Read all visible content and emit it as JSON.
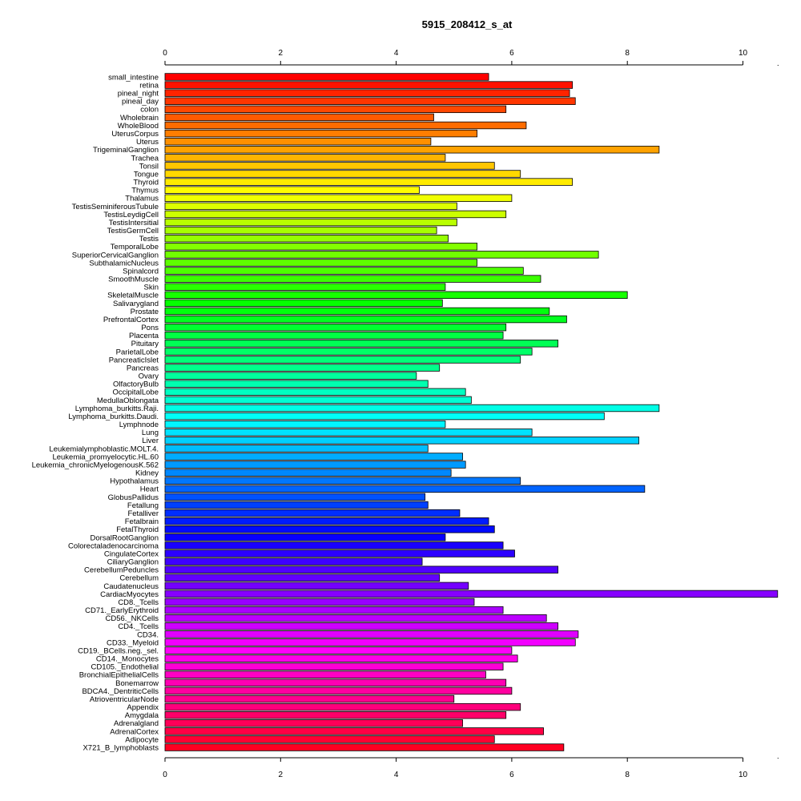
{
  "chart_data": {
    "type": "bar",
    "orientation": "horizontal",
    "title": "5915_208412_s_at",
    "xlabel": "",
    "ylabel": "",
    "xlim": [
      0,
      10.6
    ],
    "ticks": [
      0,
      2,
      4,
      6,
      8,
      10
    ],
    "tick_labels": [
      "0",
      "2",
      "4",
      "6",
      "8",
      "10"
    ],
    "grid": false,
    "color_scheme": "rainbow",
    "categories": [
      "small_intestine",
      "retina",
      "pineal_night",
      "pineal_day",
      "colon",
      "Wholebrain",
      "WholeBlood",
      "UterusCorpus",
      "Uterus",
      "TrigeminalGanglion",
      "Trachea",
      "Tonsil",
      "Tongue",
      "Thyroid",
      "Thymus",
      "Thalamus",
      "TestisSeminiferousTubule",
      "TestisLeydigCell",
      "TestisIntersitial",
      "TestisGermCell",
      "Testis",
      "TemporalLobe",
      "SuperiorCervicalGanglion",
      "SubthalamicNucleus",
      "Spinalcord",
      "SmoothMuscle",
      "Skin",
      "SkeletalMuscle",
      "Salivarygland",
      "Prostate",
      "PrefrontalCortex",
      "Pons",
      "Placenta",
      "Pituitary",
      "ParietalLobe",
      "PancreaticIslet",
      "Pancreas",
      "Ovary",
      "OlfactoryBulb",
      "OccipitalLobe",
      "MedullaOblongata",
      "Lymphoma_burkitts.Raji.",
      "Lymphoma_burkitts.Daudi.",
      "Lymphnode",
      "Lung",
      "Liver",
      "Leukemialymphoblastic.MOLT.4.",
      "Leukemia_promyelocytic.HL.60",
      "Leukemia_chronicMyelogenousK.562",
      "Kidney",
      "Hypothalamus",
      "Heart",
      "GlobusPallidus",
      "Fetallung",
      "Fetalliver",
      "Fetalbrain",
      "FetalThyroid",
      "DorsalRootGanglion",
      "Colorectaladenocarcinoma",
      "CingulateCortex",
      "CiliaryGanglion",
      "CerebellumPeduncles",
      "Cerebellum",
      "Caudatenucleus",
      "CardiacMyocytes",
      "CD8._Tcells",
      "CD71._EarlyErythroid",
      "CD56._NKCells",
      "CD4._Tcells",
      "CD34.",
      "CD33._Myeloid",
      "CD19._BCells.neg._sel.",
      "CD14._Monocytes",
      "CD105._Endothelial",
      "BronchialEpithelialCells",
      "Bonemarrow",
      "BDCA4._DentriticCells",
      "AtrioventricularNode",
      "Appendix",
      "Amygdala",
      "Adrenalgland",
      "AdrenalCortex",
      "Adipocyte",
      "X721_B_lymphoblasts"
    ],
    "values": [
      5.6,
      7.05,
      7.0,
      7.1,
      5.9,
      4.65,
      6.25,
      5.4,
      4.6,
      8.55,
      4.85,
      5.7,
      6.15,
      7.05,
      4.4,
      6.0,
      5.05,
      5.9,
      5.05,
      4.7,
      4.9,
      5.4,
      7.5,
      5.4,
      6.2,
      6.5,
      4.85,
      8.0,
      4.8,
      6.65,
      6.95,
      5.9,
      5.85,
      6.8,
      6.35,
      6.15,
      4.75,
      4.35,
      4.55,
      5.2,
      5.3,
      8.55,
      7.6,
      4.85,
      6.35,
      8.2,
      4.55,
      5.15,
      5.2,
      4.95,
      6.15,
      8.3,
      4.5,
      4.55,
      5.1,
      5.6,
      5.7,
      4.85,
      5.85,
      6.05,
      4.45,
      6.8,
      4.75,
      5.25,
      10.6,
      5.35,
      5.85,
      6.6,
      6.8,
      7.15,
      7.1,
      6.0,
      6.1,
      5.85,
      5.55,
      5.9,
      6.0,
      5.0,
      6.15,
      5.9,
      5.15,
      6.55,
      5.7,
      6.9
    ]
  }
}
